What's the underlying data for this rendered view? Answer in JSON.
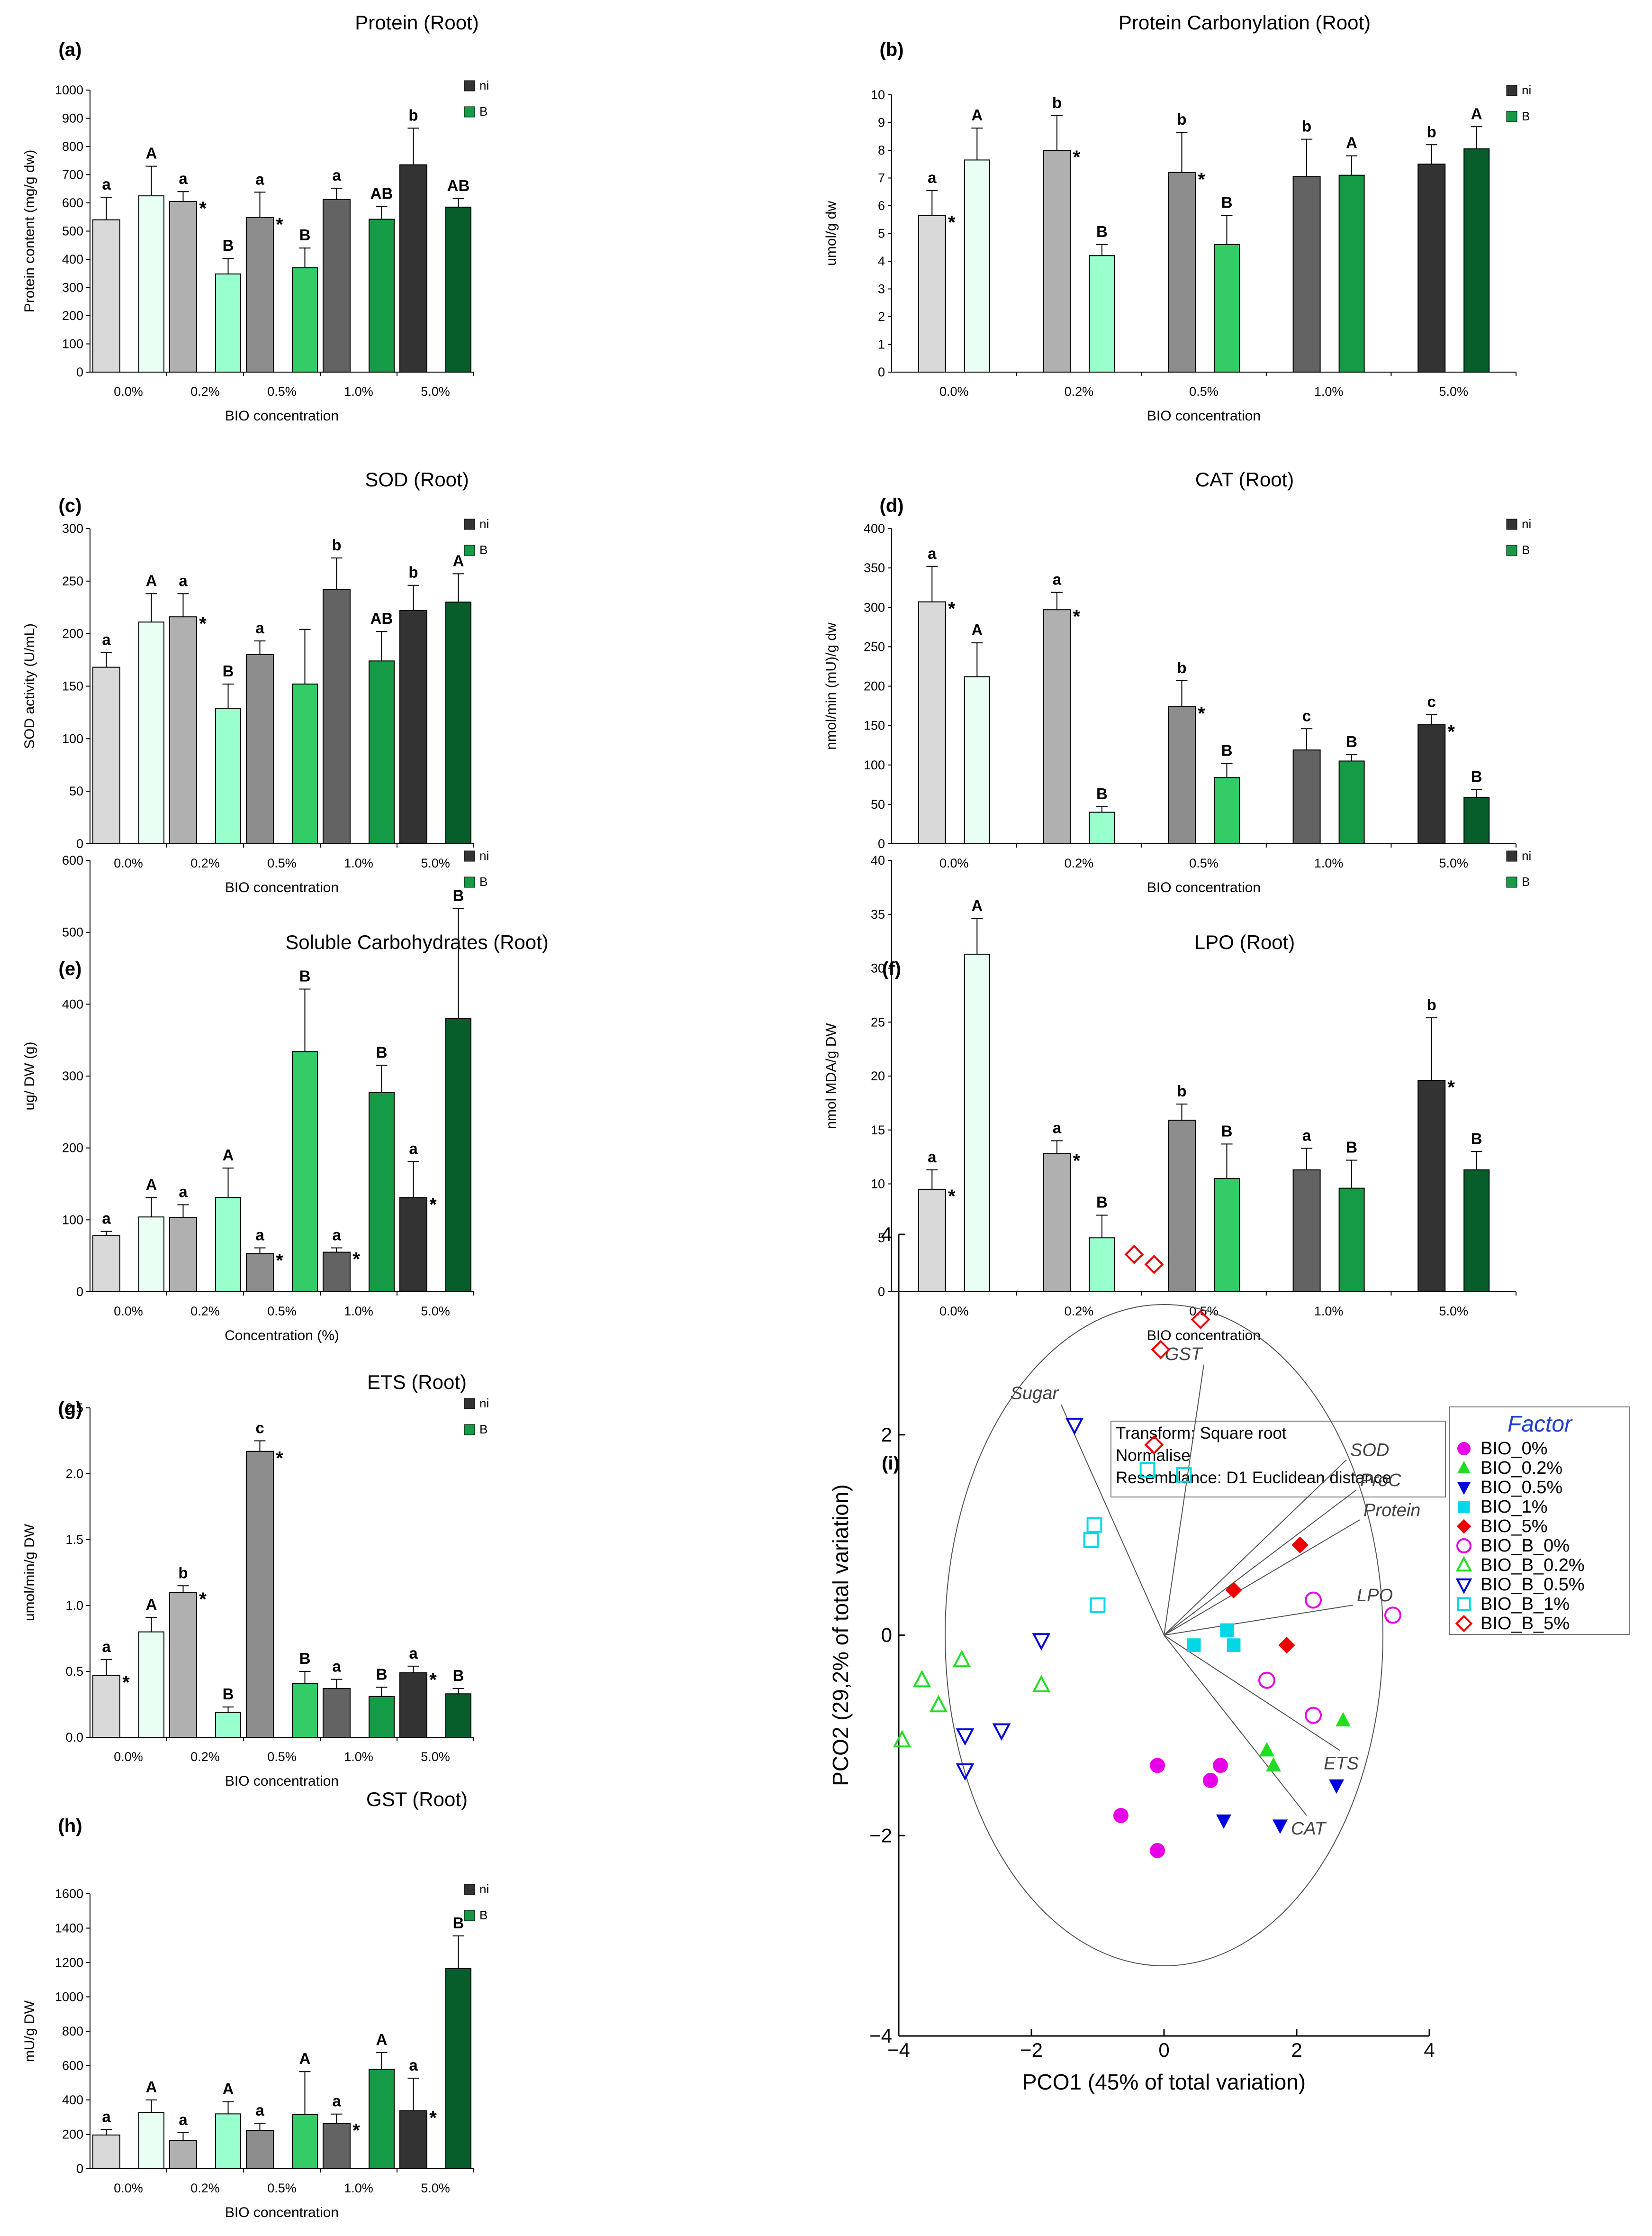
{
  "colors": {
    "ni": [
      "#d9d9d9",
      "#b0b0b0",
      "#8c8c8c",
      "#636363",
      "#333333"
    ],
    "B": [
      "#eafff4",
      "#99ffcc",
      "#33cc66",
      "#159a45",
      "#075e2b"
    ],
    "pcoa": {
      "BIO_0%": "#e800e8",
      "BIO_0.2%": "#22dd22",
      "BIO_0.5%": "#0000dd",
      "BIO_1%": "#00d8e8",
      "BIO_5%": "#ee0000"
    },
    "factor_title": "#1f3fcf"
  },
  "chart_data": [
    {
      "id": "a",
      "panel_label": "(a)",
      "type": "bar",
      "title": "Protein (Root)",
      "xlabel": "BIO concentration",
      "ylabel": "Protein content (mg/g dw)",
      "categories": [
        "0.0%",
        "0.2%",
        "0.5%",
        "1.0%",
        "5.0%"
      ],
      "ylim": [
        0,
        1000
      ],
      "yticks": [
        "0",
        "100",
        "200",
        "300",
        "400",
        "500",
        "600",
        "700",
        "800",
        "900",
        "1000"
      ],
      "series": [
        {
          "name": "ni",
          "values": [
            540,
            605,
            548,
            612,
            735
          ],
          "errors": [
            80,
            35,
            90,
            40,
            130
          ],
          "letters": [
            "a",
            "a",
            "a",
            "a",
            "b"
          ],
          "stars": [
            false,
            true,
            true,
            false,
            false
          ]
        },
        {
          "name": "B",
          "values": [
            625,
            348,
            370,
            542,
            585
          ],
          "errors": [
            105,
            55,
            70,
            45,
            30
          ],
          "letters": [
            "A",
            "B",
            "B",
            "AB",
            "AB"
          ]
        }
      ]
    },
    {
      "id": "b",
      "panel_label": "(b)",
      "type": "bar",
      "title": "Protein Carbonylation (Root)",
      "xlabel": "BIO concentration",
      "ylabel": "umol/g dw",
      "categories": [
        "0.0%",
        "0.2%",
        "0.5%",
        "1.0%",
        "5.0%"
      ],
      "ylim": [
        0,
        10
      ],
      "yticks": [
        "0",
        "1",
        "2",
        "3",
        "4",
        "5",
        "6",
        "7",
        "8",
        "9",
        "10"
      ],
      "series": [
        {
          "name": "ni",
          "values": [
            5.65,
            8.0,
            7.2,
            7.05,
            7.5
          ],
          "errors": [
            0.9,
            1.25,
            1.45,
            1.35,
            0.7
          ],
          "letters": [
            "a",
            "b",
            "b",
            "b",
            "b"
          ],
          "stars": [
            true,
            true,
            true,
            false,
            false
          ]
        },
        {
          "name": "B",
          "values": [
            7.65,
            4.2,
            4.6,
            7.1,
            8.05
          ],
          "errors": [
            1.15,
            0.4,
            1.05,
            0.7,
            0.8
          ],
          "letters": [
            "A",
            "B",
            "B",
            "A",
            "A"
          ]
        }
      ]
    },
    {
      "id": "c",
      "panel_label": "(c)",
      "type": "bar",
      "title": "SOD (Root)",
      "xlabel": "BIO concentration",
      "ylabel": "SOD activity (U/mL)",
      "categories": [
        "0.0%",
        "0.2%",
        "0.5%",
        "1.0%",
        "5.0%"
      ],
      "ylim": [
        0,
        300
      ],
      "yticks": [
        "0",
        "50",
        "100",
        "150",
        "200",
        "250",
        "300"
      ],
      "series": [
        {
          "name": "ni",
          "values": [
            168,
            216,
            180,
            242,
            222
          ],
          "errors": [
            14,
            22,
            13,
            30,
            24
          ],
          "letters": [
            "a",
            "a",
            "a",
            "b",
            "b"
          ],
          "stars": [
            false,
            true,
            false,
            false,
            false
          ]
        },
        {
          "name": "B",
          "values": [
            211,
            129,
            152,
            174,
            230
          ],
          "errors": [
            27,
            23,
            52,
            28,
            27
          ],
          "letters": [
            "A",
            "B",
            "",
            "AB",
            "A"
          ]
        }
      ]
    },
    {
      "id": "d",
      "panel_label": "(d)",
      "type": "bar",
      "title": "CAT (Root)",
      "xlabel": "BIO concentration",
      "ylabel": "nmol/min (mU)/g dw",
      "categories": [
        "0.0%",
        "0.2%",
        "0.5%",
        "1.0%",
        "5.0%"
      ],
      "ylim": [
        0,
        400
      ],
      "yticks": [
        "0",
        "50",
        "100",
        "150",
        "200",
        "250",
        "300",
        "350",
        "400"
      ],
      "series": [
        {
          "name": "ni",
          "values": [
            307,
            297,
            174,
            119,
            151
          ],
          "errors": [
            45,
            22,
            33,
            27,
            13
          ],
          "letters": [
            "a",
            "a",
            "b",
            "c",
            "c"
          ],
          "stars": [
            true,
            true,
            true,
            false,
            true
          ]
        },
        {
          "name": "B",
          "values": [
            212,
            40,
            84,
            105,
            59
          ],
          "errors": [
            43,
            7,
            18,
            8,
            10
          ],
          "letters": [
            "A",
            "B",
            "B",
            "B",
            "B"
          ]
        }
      ]
    },
    {
      "id": "e",
      "panel_label": "(e)",
      "type": "bar",
      "title": "Soluble Carbohydrates (Root)",
      "xlabel": "Concentration (%)",
      "ylabel": "ug/ DW (g)",
      "categories": [
        "0.0%",
        "0.2%",
        "0.5%",
        "1.0%",
        "5.0%"
      ],
      "ylim": [
        0,
        600
      ],
      "yticks": [
        "0",
        "100",
        "200",
        "300",
        "400",
        "500",
        "600"
      ],
      "series": [
        {
          "name": "ni",
          "values": [
            78,
            103,
            53,
            55,
            131
          ],
          "errors": [
            6,
            18,
            8,
            6,
            50
          ],
          "letters": [
            "a",
            "a",
            "a",
            "a",
            "a"
          ],
          "stars": [
            false,
            false,
            true,
            true,
            true
          ]
        },
        {
          "name": "B",
          "values": [
            104,
            131,
            334,
            277,
            380
          ],
          "errors": [
            27,
            41,
            87,
            38,
            153
          ],
          "letters": [
            "A",
            "A",
            "B",
            "B",
            "B"
          ]
        }
      ]
    },
    {
      "id": "f",
      "panel_label": "(f)",
      "type": "bar",
      "title": "LPO (Root)",
      "xlabel": "BIO concentration",
      "ylabel": "nmol MDA/g DW",
      "categories": [
        "0.0%",
        "0.2%",
        "0.5%",
        "1.0%",
        "5.0%"
      ],
      "ylim": [
        0,
        40
      ],
      "yticks": [
        "0",
        "5",
        "10",
        "15",
        "20",
        "25",
        "30",
        "35",
        "40"
      ],
      "series": [
        {
          "name": "ni",
          "values": [
            9.5,
            12.8,
            15.9,
            11.3,
            19.6
          ],
          "errors": [
            1.8,
            1.2,
            1.5,
            2.0,
            5.8
          ],
          "letters": [
            "a",
            "a",
            "b",
            "a",
            "b"
          ],
          "stars": [
            true,
            true,
            false,
            false,
            true
          ]
        },
        {
          "name": "B",
          "values": [
            31.3,
            5.0,
            10.5,
            9.6,
            11.3
          ],
          "errors": [
            3.3,
            2.1,
            3.2,
            2.6,
            1.7
          ],
          "letters": [
            "A",
            "B",
            "B",
            "B",
            "B"
          ]
        }
      ]
    },
    {
      "id": "g",
      "panel_label": "(g)",
      "type": "bar",
      "title": "ETS (Root)",
      "xlabel": "BIO concentration",
      "ylabel": "umol/min/g DW",
      "categories": [
        "0.0%",
        "0.2%",
        "0.5%",
        "1.0%",
        "5.0%"
      ],
      "ylim": [
        0,
        2.5
      ],
      "yticks": [
        "0.0",
        "0.5",
        "1.0",
        "1.5",
        "2.0",
        "2.5"
      ],
      "series": [
        {
          "name": "ni",
          "values": [
            0.47,
            1.1,
            2.17,
            0.37,
            0.49
          ],
          "errors": [
            0.12,
            0.05,
            0.08,
            0.07,
            0.05
          ],
          "letters": [
            "a",
            "b",
            "c",
            "a",
            "a"
          ],
          "stars": [
            true,
            true,
            true,
            false,
            true
          ]
        },
        {
          "name": "B",
          "values": [
            0.8,
            0.19,
            0.41,
            0.31,
            0.33
          ],
          "errors": [
            0.11,
            0.04,
            0.09,
            0.07,
            0.04
          ],
          "letters": [
            "A",
            "B",
            "B",
            "B",
            "B"
          ]
        }
      ]
    },
    {
      "id": "h",
      "panel_label": "(h)",
      "type": "bar",
      "title": "GST (Root)",
      "xlabel": "BIO concentration",
      "ylabel": "mU/g DW",
      "categories": [
        "0.0%",
        "0.2%",
        "0.5%",
        "1.0%",
        "5.0%"
      ],
      "ylim": [
        0,
        1600
      ],
      "yticks": [
        "0",
        "200",
        "400",
        "600",
        "800",
        "1000",
        "1200",
        "1400",
        "1600"
      ],
      "series": [
        {
          "name": "ni",
          "values": [
            196,
            165,
            222,
            263,
            337
          ],
          "errors": [
            32,
            45,
            43,
            55,
            190
          ],
          "letters": [
            "a",
            "a",
            "a",
            "a",
            "a"
          ],
          "stars": [
            false,
            false,
            false,
            true,
            true
          ]
        },
        {
          "name": "B",
          "values": [
            328,
            319,
            315,
            578,
            1165
          ],
          "errors": [
            72,
            70,
            250,
            98,
            190
          ],
          "letters": [
            "A",
            "A",
            "A",
            "A",
            "B"
          ]
        }
      ]
    },
    {
      "id": "i",
      "panel_label": "(i)",
      "type": "scatter",
      "xlabel": "PCO1 (45% of total variation)",
      "ylabel": "PCO2 (29,2% of total variation)",
      "xlim": [
        -4,
        4
      ],
      "ylim": [
        -4,
        4
      ],
      "xticks": [
        "−4",
        "−2",
        "0",
        "2",
        "4"
      ],
      "yticks": [
        "−4",
        "−2",
        "0",
        "2",
        "4"
      ],
      "info_lines": [
        "Transform: Square root",
        "Normalise",
        "Resemblance: D1 Euclidean distance"
      ],
      "legend_title": "Factor",
      "circle_radius": 3.3,
      "vectors": [
        {
          "name": "Sugar",
          "x": -1.55,
          "y": 2.3
        },
        {
          "name": "GST",
          "x": 0.6,
          "y": 2.7
        },
        {
          "name": "SOD",
          "x": 2.75,
          "y": 1.75
        },
        {
          "name": "ProC",
          "x": 2.9,
          "y": 1.45
        },
        {
          "name": "Protein",
          "x": 2.95,
          "y": 1.15
        },
        {
          "name": "LPO",
          "x": 2.85,
          "y": 0.3
        },
        {
          "name": "ETS",
          "x": 2.65,
          "y": -1.15
        },
        {
          "name": "CAT",
          "x": 2.15,
          "y": -1.8
        }
      ],
      "groups": [
        {
          "name": "BIO_0%",
          "marker": "circle",
          "filled": true,
          "color": "#e800e8",
          "points": [
            [
              -0.65,
              -1.8
            ],
            [
              -0.1,
              -1.3
            ],
            [
              -0.1,
              -2.15
            ],
            [
              0.7,
              -1.45
            ],
            [
              0.85,
              -1.3
            ]
          ]
        },
        {
          "name": "BIO_0.2%",
          "marker": "triangle",
          "filled": true,
          "color": "#22dd22",
          "points": [
            [
              1.55,
              -1.15
            ],
            [
              1.65,
              -1.3
            ],
            [
              2.7,
              -0.85
            ]
          ]
        },
        {
          "name": "BIO_0.5%",
          "marker": "tri-down",
          "filled": true,
          "color": "#0000dd",
          "points": [
            [
              0.9,
              -1.85
            ],
            [
              1.75,
              -1.9
            ],
            [
              2.6,
              -1.5
            ]
          ]
        },
        {
          "name": "BIO_1%",
          "marker": "square",
          "filled": true,
          "color": "#00d8e8",
          "points": [
            [
              0.45,
              -0.1
            ],
            [
              0.95,
              0.05
            ],
            [
              1.05,
              -0.1
            ]
          ]
        },
        {
          "name": "BIO_5%",
          "marker": "diamond",
          "filled": true,
          "color": "#ee0000",
          "points": [
            [
              1.05,
              0.45
            ],
            [
              1.85,
              -0.1
            ],
            [
              2.05,
              0.9
            ]
          ]
        },
        {
          "name": "BIO_B_0%",
          "marker": "circle",
          "filled": false,
          "color": "#e800e8",
          "points": [
            [
              1.55,
              -0.45
            ],
            [
              2.25,
              0.35
            ],
            [
              2.25,
              -0.8
            ],
            [
              3.45,
              0.2
            ]
          ]
        },
        {
          "name": "BIO_B_0.2%",
          "marker": "triangle",
          "filled": false,
          "color": "#22dd22",
          "points": [
            [
              -3.95,
              -1.05
            ],
            [
              -3.65,
              -0.45
            ],
            [
              -3.4,
              -0.7
            ],
            [
              -3.05,
              -0.25
            ],
            [
              -1.85,
              -0.5
            ]
          ]
        },
        {
          "name": "BIO_B_0.5%",
          "marker": "tri-down",
          "filled": false,
          "color": "#0000dd",
          "points": [
            [
              -3.0,
              -1.0
            ],
            [
              -3.0,
              -1.35
            ],
            [
              -2.45,
              -0.95
            ],
            [
              -1.85,
              -0.05
            ],
            [
              -1.35,
              2.1
            ]
          ]
        },
        {
          "name": "BIO_B_1%",
          "marker": "square",
          "filled": false,
          "color": "#00d8e8",
          "points": [
            [
              -1.1,
              0.95
            ],
            [
              -1.05,
              1.1
            ],
            [
              -1.0,
              0.3
            ],
            [
              -0.25,
              1.65
            ],
            [
              0.3,
              1.6
            ]
          ]
        },
        {
          "name": "BIO_B_5%",
          "marker": "diamond",
          "filled": false,
          "color": "#ee0000",
          "points": [
            [
              -0.45,
              3.8
            ],
            [
              -0.15,
              3.7
            ],
            [
              -0.05,
              2.85
            ],
            [
              -0.15,
              1.9
            ],
            [
              0.55,
              3.15
            ]
          ]
        }
      ]
    }
  ]
}
